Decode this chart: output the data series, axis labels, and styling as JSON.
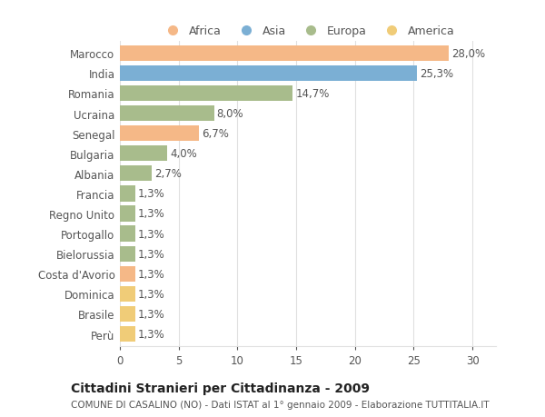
{
  "categories": [
    "Marocco",
    "India",
    "Romania",
    "Ucraina",
    "Senegal",
    "Bulgaria",
    "Albania",
    "Francia",
    "Regno Unito",
    "Portogallo",
    "Bielorussia",
    "Costa d'Avorio",
    "Dominica",
    "Brasile",
    "Perù"
  ],
  "values": [
    28.0,
    25.3,
    14.7,
    8.0,
    6.7,
    4.0,
    2.7,
    1.3,
    1.3,
    1.3,
    1.3,
    1.3,
    1.3,
    1.3,
    1.3
  ],
  "labels": [
    "28,0%",
    "25,3%",
    "14,7%",
    "8,0%",
    "6,7%",
    "4,0%",
    "2,7%",
    "1,3%",
    "1,3%",
    "1,3%",
    "1,3%",
    "1,3%",
    "1,3%",
    "1,3%",
    "1,3%"
  ],
  "continents": [
    "Africa",
    "Asia",
    "Europa",
    "Europa",
    "Africa",
    "Europa",
    "Europa",
    "Europa",
    "Europa",
    "Europa",
    "Europa",
    "Africa",
    "America",
    "America",
    "America"
  ],
  "colors": {
    "Africa": "#F5B887",
    "Asia": "#7BAFD4",
    "Europa": "#A8BC8C",
    "America": "#F0CC78"
  },
  "legend_order": [
    "Africa",
    "Asia",
    "Europa",
    "America"
  ],
  "title": "Cittadini Stranieri per Cittadinanza - 2009",
  "subtitle": "COMUNE DI CASALINO (NO) - Dati ISTAT al 1° gennaio 2009 - Elaborazione TUTTITALIA.IT",
  "xlim": [
    0,
    32
  ],
  "xticks": [
    0,
    5,
    10,
    15,
    20,
    25,
    30
  ],
  "background_color": "#ffffff",
  "grid_color": "#e0e0e0",
  "bar_height": 0.78,
  "title_fontsize": 10,
  "subtitle_fontsize": 7.5,
  "tick_fontsize": 8.5,
  "label_fontsize": 8.5
}
